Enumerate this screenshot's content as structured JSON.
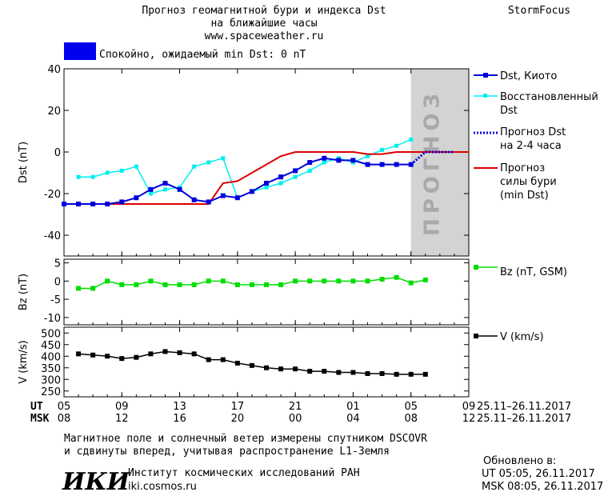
{
  "header": {
    "title_line1": "Прогноз геомагнитной бури и индекса Dst",
    "title_line2": "на ближайшие часы",
    "site": "www.spaceweather.ru",
    "brand": "StormFocus",
    "status_text": "Спокойно, ожидаемый min Dst: 0 nT",
    "status_color": "#0000ee"
  },
  "forecast_watermark": "ПРОГНОЗ",
  "time_axis": {
    "ut_label": "UT",
    "msk_label": "MSK",
    "ut_ticks": [
      "05",
      "09",
      "13",
      "17",
      "21",
      "01",
      "05",
      "09"
    ],
    "msk_ticks": [
      "08",
      "12",
      "16",
      "20",
      "00",
      "04",
      "08",
      "12"
    ],
    "ut_range": "25.11–26.11.2017",
    "msk_range": "25.11–26.11.2017"
  },
  "legend": {
    "dst_kyoto": "Dst, Киото",
    "dst_restored_1": "Восстановленный",
    "dst_restored_2": "Dst",
    "dst_forecast_1": "Прогноз Dst",
    "dst_forecast_2": "на 2-4 часа",
    "storm_1": "Прогноз",
    "storm_2": "силы бури",
    "storm_3": "(min Dst)",
    "bz": "Bz (nT, GSM)",
    "v": "V (km/s)"
  },
  "colors": {
    "dst_kyoto": "#0000dd",
    "dst_restored": "#00eeee",
    "storm": "#dd0000",
    "bz": "#00dd00",
    "v": "#000000",
    "forecast_band": "#d3d3d3"
  },
  "footer": {
    "note_line1": "Магнитное поле и солнечный ветер измерены спутником DSCOVR",
    "note_line2": "и сдвинуты вперед, учитывая распространение L1-Земля",
    "logo": "ИКИ",
    "institute": "Институт космических исследований РАН",
    "institute_site": "iki.cosmos.ru",
    "updated_label": "Обновлено в:",
    "updated_ut": "UT  05:05, 26.11.2017",
    "updated_msk": "MSK 08:05, 26.11.2017"
  },
  "chart_data": [
    {
      "type": "line",
      "panel": "dst",
      "ylabel": "Dst (nT)",
      "ylim": [
        -50,
        40
      ],
      "yticks": [
        40,
        20,
        0,
        -20,
        -40
      ],
      "xlim": [
        0,
        28
      ],
      "forecast_start_x": 24,
      "series": [
        {
          "name": "Dst, Киото",
          "x": [
            0,
            1,
            2,
            3,
            4,
            5,
            6,
            7,
            8,
            9,
            10,
            11,
            12,
            13,
            14,
            15,
            16,
            17,
            18,
            19,
            20,
            21,
            22,
            23,
            24
          ],
          "y": [
            -25,
            -25,
            -25,
            -25,
            -24,
            -22,
            -18,
            -15,
            -18,
            -23,
            -24,
            -21,
            -22,
            -19,
            -15,
            -12,
            -9,
            -5,
            -3,
            -4,
            -4,
            -6,
            -6,
            -6,
            -6
          ]
        },
        {
          "name": "Восстановленный Dst",
          "x": [
            1,
            2,
            3,
            4,
            5,
            6,
            7,
            8,
            9,
            10,
            11,
            12,
            13,
            14,
            15,
            16,
            17,
            18,
            19,
            20,
            21,
            22,
            23,
            24
          ],
          "y": [
            -12,
            -12,
            -10,
            -9,
            -7,
            -20,
            -18,
            -17,
            -7,
            -5,
            -3,
            -22,
            -19,
            -17,
            -15,
            -12,
            -9,
            -5,
            -3,
            -5,
            -2,
            1,
            3,
            6
          ]
        },
        {
          "name": "Прогноз Dst на 2-4 часа",
          "x": [
            24,
            25,
            26,
            27
          ],
          "y": [
            -6,
            0,
            0,
            0
          ]
        },
        {
          "name": "Прогноз силы бури (min Dst)",
          "x": [
            0,
            1,
            2,
            3,
            4,
            5,
            6,
            7,
            8,
            9,
            10,
            11,
            12,
            13,
            14,
            15,
            16,
            17,
            18,
            19,
            20,
            21,
            22,
            23,
            24,
            25,
            26,
            27,
            28
          ],
          "y": [
            -25,
            -25,
            -25,
            -25,
            -25,
            -25,
            -25,
            -25,
            -25,
            -25,
            -25,
            -15,
            -14,
            -10,
            -6,
            -2,
            0,
            0,
            0,
            0,
            0,
            -1,
            -1,
            0,
            0,
            0,
            0,
            0,
            0
          ]
        }
      ]
    },
    {
      "type": "line",
      "panel": "bz",
      "ylabel": "Bz (nT)",
      "ylim": [
        -12,
        6
      ],
      "yticks": [
        5,
        0,
        -5,
        -10
      ],
      "xlim": [
        0,
        28
      ],
      "series": [
        {
          "name": "Bz (nT, GSM)",
          "x": [
            1,
            2,
            3,
            4,
            5,
            6,
            7,
            8,
            9,
            10,
            11,
            12,
            13,
            14,
            15,
            16,
            17,
            18,
            19,
            20,
            21,
            22,
            23,
            24,
            25
          ],
          "y": [
            -2,
            -2,
            0,
            -1,
            -1,
            0,
            -1,
            -1,
            -1,
            0,
            0,
            -1,
            -1,
            -1,
            -1,
            0,
            0,
            0,
            0,
            0,
            0,
            0.5,
            1,
            -0.5,
            0.3
          ]
        }
      ]
    },
    {
      "type": "line",
      "panel": "v",
      "ylabel": "V (km/s)",
      "ylim": [
        225,
        525
      ],
      "yticks": [
        500,
        450,
        400,
        350,
        300,
        250
      ],
      "xlim": [
        0,
        28
      ],
      "series": [
        {
          "name": "V (km/s)",
          "x": [
            1,
            2,
            3,
            4,
            5,
            6,
            7,
            8,
            9,
            10,
            11,
            12,
            13,
            14,
            15,
            16,
            17,
            18,
            19,
            20,
            21,
            22,
            23,
            24,
            25
          ],
          "y": [
            410,
            405,
            400,
            390,
            395,
            410,
            420,
            415,
            410,
            385,
            385,
            370,
            360,
            350,
            345,
            345,
            335,
            335,
            330,
            330,
            325,
            325,
            322,
            322,
            322
          ]
        }
      ]
    }
  ]
}
